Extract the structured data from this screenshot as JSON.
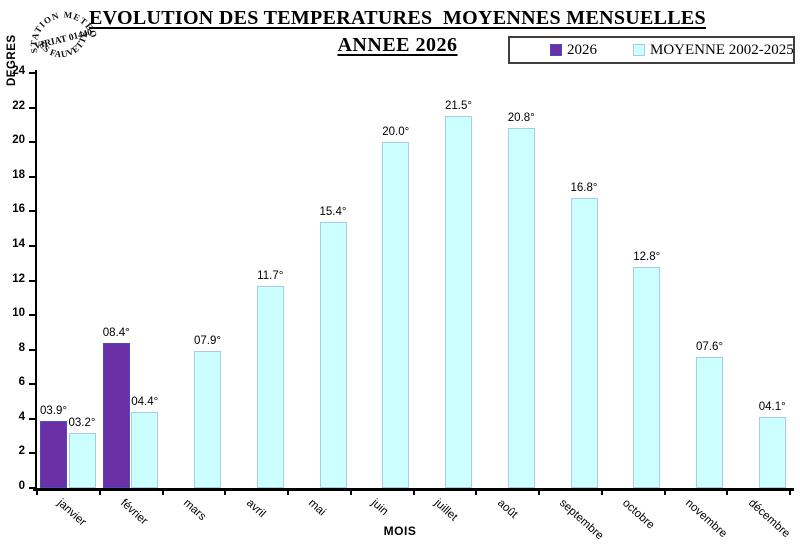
{
  "stamp": {
    "arc_top": "STATION METEO",
    "center": "VIRIAT 01440",
    "arc_bottom": "LES FAUVETTES"
  },
  "header": {
    "title": "EVOLUTION DES TEMPERATURES  MOYENNES MENSUELLES",
    "subtitle": "ANNEE 2026"
  },
  "chart_data": {
    "type": "bar",
    "title": "EVOLUTION DES TEMPERATURES  MOYENNES MENSUELLES",
    "subtitle": "ANNEE 2026",
    "xlabel": "MOIS",
    "ylabel": "DEGRES",
    "ylim": [
      0,
      24
    ],
    "ytick_step": 2,
    "grid": false,
    "legend_position": "top-right",
    "categories": [
      "janvier",
      "février",
      "mars",
      "avril",
      "mai",
      "juin",
      "juillet",
      "août",
      "septembre",
      "octobre",
      "novembre",
      "décembre"
    ],
    "series": [
      {
        "name": "2026",
        "fill": "#6b2fa6",
        "border": "#4b4bc8",
        "values": [
          3.9,
          8.4,
          null,
          null,
          null,
          null,
          null,
          null,
          null,
          null,
          null,
          null
        ],
        "labels": [
          "03.9°",
          "08.4°",
          null,
          null,
          null,
          null,
          null,
          null,
          null,
          null,
          null,
          null
        ]
      },
      {
        "name": "MOYENNE 2002-2025",
        "fill": "#ccffff",
        "border": "#a8cbe8",
        "values": [
          3.2,
          4.4,
          7.9,
          11.7,
          15.4,
          20.0,
          21.5,
          20.8,
          16.8,
          12.8,
          7.6,
          4.1
        ],
        "labels": [
          "03.2°",
          "04.4°",
          "07.9°",
          "11.7°",
          "15.4°",
          "20.0°",
          "21.5°",
          "20.8°",
          "16.8°",
          "12.8°",
          "07.6°",
          "04.1°"
        ]
      }
    ]
  }
}
